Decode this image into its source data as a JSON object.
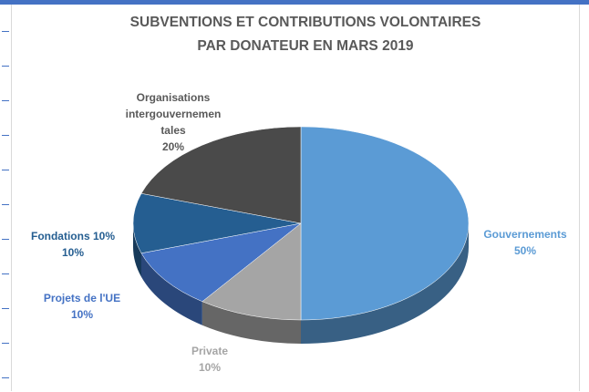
{
  "chart_data": {
    "type": "pie",
    "title": "SUBVENTIONS ET CONTRIBUTIONS VOLONTAIRES PAR DONATEUR EN MARS 2019",
    "categories": [
      "Gouvernements",
      "Private",
      "Projets de l'UE",
      "Fondations 10%",
      "Organisations intergouvernementales"
    ],
    "values": [
      50,
      10,
      10,
      10,
      20
    ],
    "value_labels": [
      "50%",
      "10%",
      "10%",
      "10%",
      "20%"
    ],
    "colors": [
      "#5b9bd5",
      "#a5a5a5",
      "#4472c4",
      "#255e91",
      "#4a4a4a"
    ]
  }
}
